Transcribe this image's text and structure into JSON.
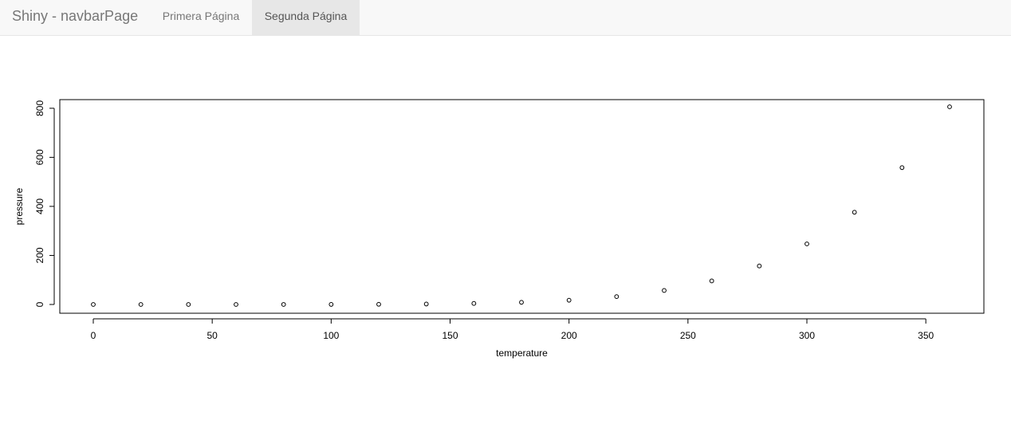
{
  "navbar": {
    "brand": "Shiny - navbarPage",
    "tabs": [
      {
        "label": "Primera Página",
        "active": false
      },
      {
        "label": "Segunda Página",
        "active": true
      }
    ],
    "active_bg_color": "#e7e7e7",
    "bar_bg_color": "#f8f8f8"
  },
  "chart_data": {
    "type": "scatter",
    "title": "",
    "xlabel": "temperature",
    "ylabel": "pressure",
    "xlim": [
      0,
      360
    ],
    "ylim": [
      0,
      806
    ],
    "x_ticks": [
      0,
      50,
      100,
      150,
      200,
      250,
      300,
      350
    ],
    "y_ticks": [
      0,
      200,
      400,
      600,
      800
    ],
    "grid": false,
    "marker": "open-circle",
    "x": [
      0,
      20,
      40,
      60,
      80,
      100,
      120,
      140,
      160,
      180,
      200,
      220,
      240,
      260,
      280,
      300,
      320,
      340,
      360
    ],
    "y": [
      0.0002,
      0.0012,
      0.006,
      0.03,
      0.09,
      0.27,
      0.75,
      1.85,
      4.2,
      8.8,
      17.3,
      32.1,
      57.0,
      96.0,
      157.0,
      247.0,
      376.0,
      558.0,
      806.0
    ]
  }
}
